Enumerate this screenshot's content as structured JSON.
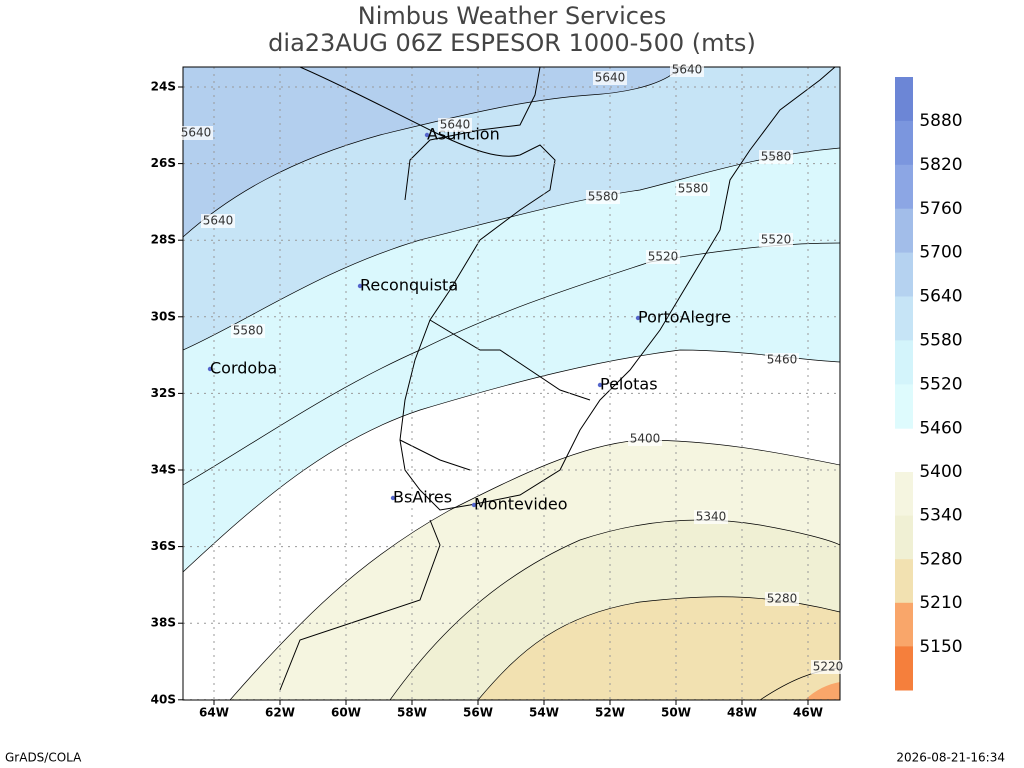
{
  "header": {
    "title": "Nimbus Weather Services",
    "subtitle": "dia23AUG 06Z ESPESOR 1000-500 (mts)"
  },
  "map": {
    "lat_labels": [
      "24S",
      "26S",
      "28S",
      "30S",
      "32S",
      "34S",
      "36S",
      "38S",
      "40S"
    ],
    "lon_labels": [
      "64W",
      "62W",
      "60W",
      "58W",
      "56W",
      "54W",
      "52W",
      "50W",
      "48W",
      "46W"
    ],
    "cities": [
      "Asuncion",
      "Reconquista",
      "PortoAlegre",
      "Cordoba",
      "Pelotas",
      "BsAires",
      "Montevideo"
    ],
    "contour_labels": [
      "5640",
      "5640",
      "5640",
      "5640",
      "5640",
      "5580",
      "5580",
      "5580",
      "5580",
      "5520",
      "5520",
      "5460",
      "5400",
      "5340",
      "5280",
      "5220"
    ]
  },
  "colorbar": {
    "upper": {
      "labels": [
        "5880",
        "5820",
        "5760",
        "5700",
        "5640",
        "5580",
        "5520",
        "5460"
      ],
      "colors": [
        "#6c86d6",
        "#7b96de",
        "#8ca6e4",
        "#a2bde9",
        "#b5d2f0",
        "#c6e4f6",
        "#d3f4fb",
        "#defbfd"
      ]
    },
    "lower": {
      "labels": [
        "5400",
        "5340",
        "5280",
        "5210",
        "5150"
      ],
      "colors": [
        "#f5f5e0",
        "#f0f0d4",
        "#f2e1b1",
        "#f9a66a",
        "#f57f3c"
      ]
    }
  },
  "footer": {
    "left": "GrADS/COLA",
    "right": "2026-08-21-16:34"
  }
}
